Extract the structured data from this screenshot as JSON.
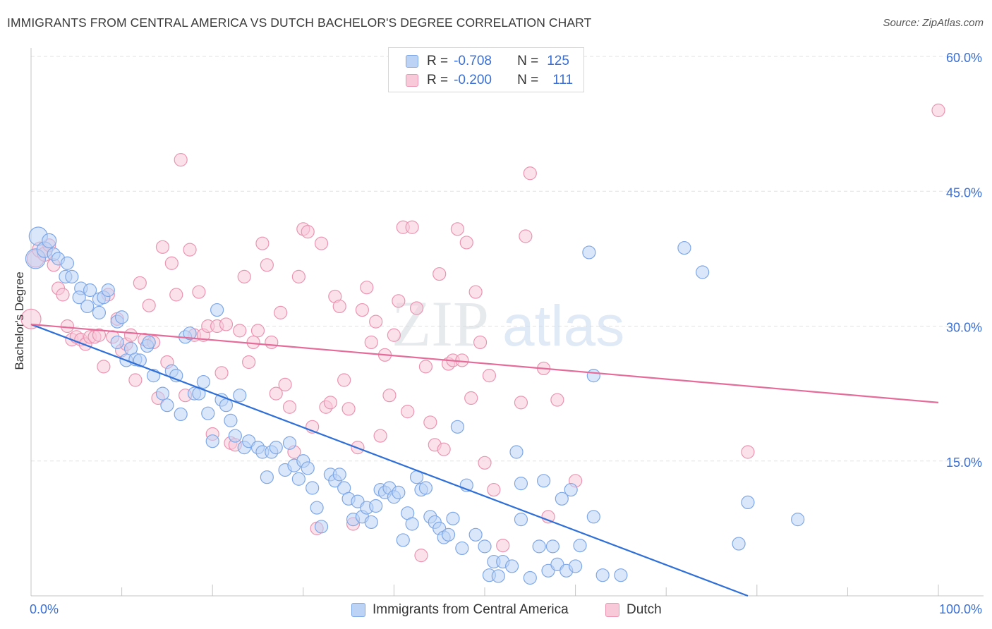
{
  "title": "IMMIGRANTS FROM CENTRAL AMERICA VS DUTCH BACHELOR'S DEGREE CORRELATION CHART",
  "source": "Source: ZipAtlas.com",
  "watermark": {
    "zip": "ZIP",
    "atlas": "atlas"
  },
  "colors": {
    "blue_fill": "#bcd3f5",
    "blue_stroke": "#7ea7e6",
    "blue_line": "#2f6fd6",
    "pink_fill": "#f8c9d8",
    "pink_stroke": "#ea94b2",
    "pink_line": "#e56b98",
    "axis_text": "#3b6fd4",
    "grid": "#e2e2e2"
  },
  "legend": {
    "r_label": "R =",
    "n_label": "N =",
    "blue": {
      "r": "-0.708",
      "n": "125"
    },
    "pink": {
      "r": "-0.200",
      "n": "111"
    }
  },
  "bottom_legend": [
    "Immigrants from Central America",
    "Dutch"
  ],
  "chart_data": {
    "type": "scatter",
    "xlabel": "",
    "ylabel": "Bachelor's Degree",
    "xlim": [
      0,
      100
    ],
    "ylim": [
      0,
      60
    ],
    "x_tick_labels": [
      {
        "value": 0,
        "label": "0.0%"
      },
      {
        "value": 100,
        "label": "100.0%"
      }
    ],
    "y_tick_labels": [
      {
        "value": 15,
        "label": "15.0%"
      },
      {
        "value": 30,
        "label": "30.0%"
      },
      {
        "value": 45,
        "label": "45.0%"
      },
      {
        "value": 60,
        "label": "60.0%"
      }
    ],
    "grid": true,
    "series": [
      {
        "name": "Immigrants from Central America",
        "color": "blue",
        "trendline": {
          "x": [
            0,
            79
          ],
          "y": [
            30.2,
            0
          ]
        },
        "points": [
          [
            0.5,
            37.5,
            14
          ],
          [
            0.8,
            40,
            13
          ],
          [
            1.5,
            38.5,
            11
          ],
          [
            2,
            39.5,
            10
          ],
          [
            2.5,
            38,
            9
          ],
          [
            3,
            37.5,
            9
          ],
          [
            4,
            37,
            9
          ],
          [
            3.8,
            35.5,
            9
          ],
          [
            4.5,
            35.5,
            9
          ],
          [
            5.5,
            34.2,
            9
          ],
          [
            5.3,
            33.2,
            9
          ],
          [
            6.5,
            34,
            9
          ],
          [
            6.2,
            32.2,
            9
          ],
          [
            7.5,
            33,
            9
          ],
          [
            8,
            33.2,
            9
          ],
          [
            8.5,
            34,
            9
          ],
          [
            7.5,
            31.5,
            9
          ],
          [
            9.5,
            30.5,
            9
          ],
          [
            10,
            31,
            9
          ],
          [
            9.5,
            28.2,
            9
          ],
          [
            10.5,
            26.2,
            9
          ],
          [
            11,
            27.5,
            9
          ],
          [
            11.5,
            26.3,
            9
          ],
          [
            12,
            26.2,
            9
          ],
          [
            12.8,
            27.8,
            9
          ],
          [
            13,
            28.2,
            9
          ],
          [
            13.5,
            24.5,
            9
          ],
          [
            14.5,
            22.5,
            9
          ],
          [
            15,
            21.2,
            9
          ],
          [
            15.5,
            25,
            9
          ],
          [
            16,
            24.5,
            9
          ],
          [
            16.5,
            20.2,
            9
          ],
          [
            17,
            28.8,
            9
          ],
          [
            17.5,
            29.2,
            9
          ],
          [
            18,
            22.5,
            9
          ],
          [
            18.5,
            22.5,
            9
          ],
          [
            19,
            23.8,
            9
          ],
          [
            19.5,
            20.3,
            9
          ],
          [
            20,
            17.2,
            9
          ],
          [
            20.5,
            31.8,
            9
          ],
          [
            21,
            21.8,
            9
          ],
          [
            21.5,
            21.2,
            9
          ],
          [
            22,
            19.5,
            9
          ],
          [
            22.5,
            17.8,
            9
          ],
          [
            23,
            22.3,
            9
          ],
          [
            23.5,
            16.5,
            9
          ],
          [
            24,
            17.2,
            9
          ],
          [
            25,
            16.5,
            9
          ],
          [
            25.5,
            16,
            9
          ],
          [
            26,
            13.2,
            9
          ],
          [
            26.5,
            16,
            9
          ],
          [
            27,
            16.5,
            9
          ],
          [
            28,
            14,
            9
          ],
          [
            28.5,
            17,
            9
          ],
          [
            29,
            14.5,
            9
          ],
          [
            29.5,
            13,
            9
          ],
          [
            30,
            15,
            9
          ],
          [
            30.5,
            14.2,
            9
          ],
          [
            31,
            12,
            9
          ],
          [
            31.5,
            9.8,
            9
          ],
          [
            32,
            7.7,
            9
          ],
          [
            33,
            13.5,
            9
          ],
          [
            33.5,
            12.8,
            9
          ],
          [
            34,
            13.5,
            9
          ],
          [
            34.5,
            12,
            9
          ],
          [
            35,
            10.8,
            9
          ],
          [
            35.5,
            8.5,
            9
          ],
          [
            36,
            10.5,
            9
          ],
          [
            36.5,
            8.8,
            9
          ],
          [
            37,
            9.8,
            9
          ],
          [
            37.5,
            8.2,
            9
          ],
          [
            38,
            10,
            9
          ],
          [
            38.5,
            11.8,
            9
          ],
          [
            39,
            11.5,
            9
          ],
          [
            39.5,
            12,
            9
          ],
          [
            40,
            11,
            9
          ],
          [
            40.5,
            11.5,
            9
          ],
          [
            41,
            6.2,
            9
          ],
          [
            41.5,
            9.2,
            9
          ],
          [
            42,
            8,
            9
          ],
          [
            42.5,
            13.2,
            9
          ],
          [
            43,
            11.8,
            9
          ],
          [
            43.5,
            12,
            9
          ],
          [
            44,
            8.8,
            9
          ],
          [
            44.5,
            8.2,
            9
          ],
          [
            45,
            7.5,
            9
          ],
          [
            45.5,
            6.5,
            9
          ],
          [
            46,
            6.8,
            9
          ],
          [
            46.5,
            8.6,
            9
          ],
          [
            47,
            18.8,
            9
          ],
          [
            47.5,
            5.3,
            9
          ],
          [
            48,
            12.3,
            9
          ],
          [
            49,
            6.8,
            9
          ],
          [
            50,
            5.5,
            9
          ],
          [
            50.5,
            2.3,
            9
          ],
          [
            51,
            3.8,
            9
          ],
          [
            51.5,
            2.2,
            9
          ],
          [
            52,
            3.8,
            9
          ],
          [
            53,
            3.3,
            9
          ],
          [
            53.5,
            16,
            9
          ],
          [
            54,
            8.5,
            9
          ],
          [
            54,
            12.5,
            9
          ],
          [
            55,
            2.0,
            9
          ],
          [
            56,
            5.5,
            9
          ],
          [
            56.5,
            12.8,
            9
          ],
          [
            57,
            2.8,
            9
          ],
          [
            57.5,
            5.5,
            9
          ],
          [
            58,
            3.5,
            9
          ],
          [
            58.5,
            10.8,
            9
          ],
          [
            59,
            2.8,
            9
          ],
          [
            59.5,
            11.8,
            9
          ],
          [
            60,
            3.3,
            9
          ],
          [
            60.5,
            5.6,
            9
          ],
          [
            61.5,
            38.2,
            9
          ],
          [
            62,
            8.8,
            9
          ],
          [
            62,
            24.5,
            9
          ],
          [
            63,
            2.3,
            9
          ],
          [
            65,
            2.3,
            9
          ],
          [
            72,
            38.7,
            9
          ],
          [
            74,
            36,
            9
          ],
          [
            78,
            5.8,
            9
          ],
          [
            79,
            10.4,
            9
          ],
          [
            84.5,
            8.5,
            9
          ]
        ]
      },
      {
        "name": "Dutch",
        "color": "pink",
        "trendline": {
          "x": [
            0,
            100
          ],
          "y": [
            30.2,
            21.5
          ]
        },
        "points": [
          [
            0,
            30.8,
            14
          ],
          [
            0.5,
            37.5,
            12
          ],
          [
            1,
            38.5,
            11
          ],
          [
            1.5,
            38,
            10
          ],
          [
            2,
            39,
            9
          ],
          [
            2.5,
            36.8,
            9
          ],
          [
            3,
            34.2,
            9
          ],
          [
            3.5,
            33.5,
            9
          ],
          [
            4,
            30,
            9
          ],
          [
            4.5,
            28.5,
            9
          ],
          [
            5,
            28.8,
            9
          ],
          [
            5.5,
            28.5,
            9
          ],
          [
            6,
            28,
            9
          ],
          [
            6.5,
            28.8,
            9
          ],
          [
            7,
            28.8,
            9
          ],
          [
            7.5,
            29,
            9
          ],
          [
            8,
            25.5,
            9
          ],
          [
            8.5,
            33.5,
            9
          ],
          [
            9,
            28.8,
            9
          ],
          [
            9.5,
            30.8,
            9
          ],
          [
            10,
            27.3,
            9
          ],
          [
            10.5,
            28,
            9
          ],
          [
            11,
            29,
            9
          ],
          [
            11.5,
            24,
            9
          ],
          [
            12,
            34.8,
            9
          ],
          [
            12.5,
            28.5,
            9
          ],
          [
            13,
            32.3,
            9
          ],
          [
            13.5,
            28.2,
            9
          ],
          [
            14,
            22,
            9
          ],
          [
            14.5,
            38.8,
            9
          ],
          [
            15,
            26,
            9
          ],
          [
            15.5,
            37,
            9
          ],
          [
            16,
            33.5,
            9
          ],
          [
            16.5,
            48.5,
            9
          ],
          [
            17,
            22.3,
            9
          ],
          [
            17.5,
            38.5,
            9
          ],
          [
            18,
            29,
            9
          ],
          [
            18.5,
            33.8,
            9
          ],
          [
            19,
            29,
            9
          ],
          [
            19.5,
            30,
            9
          ],
          [
            20,
            18,
            9
          ],
          [
            20.5,
            30,
            9
          ],
          [
            21,
            24.8,
            9
          ],
          [
            21.5,
            30.2,
            9
          ],
          [
            22,
            17,
            9
          ],
          [
            22.5,
            16.8,
            9
          ],
          [
            23,
            29.5,
            9
          ],
          [
            23.5,
            35.5,
            9
          ],
          [
            24,
            26,
            9
          ],
          [
            24.5,
            28.2,
            9
          ],
          [
            25,
            29.5,
            9
          ],
          [
            25.5,
            39.2,
            9
          ],
          [
            26,
            36.8,
            9
          ],
          [
            26.5,
            28.2,
            9
          ],
          [
            27,
            22.5,
            9
          ],
          [
            27.5,
            31.5,
            9
          ],
          [
            28,
            23.5,
            9
          ],
          [
            28.5,
            21,
            9
          ],
          [
            29,
            16,
            9
          ],
          [
            29.5,
            35.5,
            9
          ],
          [
            30,
            40.8,
            9
          ],
          [
            30.5,
            40.5,
            9
          ],
          [
            31,
            18.8,
            9
          ],
          [
            31.5,
            7.5,
            9
          ],
          [
            32,
            39.2,
            9
          ],
          [
            32.5,
            21,
            9
          ],
          [
            33,
            21.5,
            9
          ],
          [
            33.5,
            33.3,
            9
          ],
          [
            34,
            32.2,
            9
          ],
          [
            34.5,
            24,
            9
          ],
          [
            35,
            20.8,
            9
          ],
          [
            35.5,
            8,
            9
          ],
          [
            36,
            16.5,
            9
          ],
          [
            36.5,
            31.8,
            9
          ],
          [
            37,
            34.3,
            9
          ],
          [
            37.5,
            28.2,
            9
          ],
          [
            38,
            30.5,
            9
          ],
          [
            38.5,
            17.8,
            9
          ],
          [
            39,
            26.8,
            9
          ],
          [
            39.5,
            22.3,
            9
          ],
          [
            40,
            29,
            9
          ],
          [
            40.5,
            32.8,
            9
          ],
          [
            41,
            41,
            9
          ],
          [
            41.5,
            20.5,
            9
          ],
          [
            42,
            41,
            9
          ],
          [
            42.5,
            32,
            9
          ],
          [
            43,
            4.5,
            9
          ],
          [
            43.5,
            25.5,
            9
          ],
          [
            44,
            19.3,
            9
          ],
          [
            44.5,
            16.8,
            9
          ],
          [
            45,
            35.8,
            9
          ],
          [
            45.5,
            16.3,
            9
          ],
          [
            46,
            25.8,
            9
          ],
          [
            46.5,
            26.2,
            9
          ],
          [
            47,
            40.8,
            9
          ],
          [
            47.5,
            26.2,
            9
          ],
          [
            48,
            39.3,
            9
          ],
          [
            48.5,
            22,
            9
          ],
          [
            49,
            33.8,
            9
          ],
          [
            49.5,
            28.2,
            9
          ],
          [
            50,
            14.8,
            9
          ],
          [
            50.5,
            24.5,
            9
          ],
          [
            51,
            11.8,
            9
          ],
          [
            52,
            5.6,
            9
          ],
          [
            54,
            21.5,
            9
          ],
          [
            54.5,
            40,
            9
          ],
          [
            55,
            47,
            9
          ],
          [
            56.5,
            25.3,
            9
          ],
          [
            57,
            8.8,
            9
          ],
          [
            58,
            21.8,
            9
          ],
          [
            60,
            12.8,
            9
          ],
          [
            79,
            16,
            9
          ],
          [
            100,
            54,
            9
          ]
        ]
      }
    ]
  }
}
